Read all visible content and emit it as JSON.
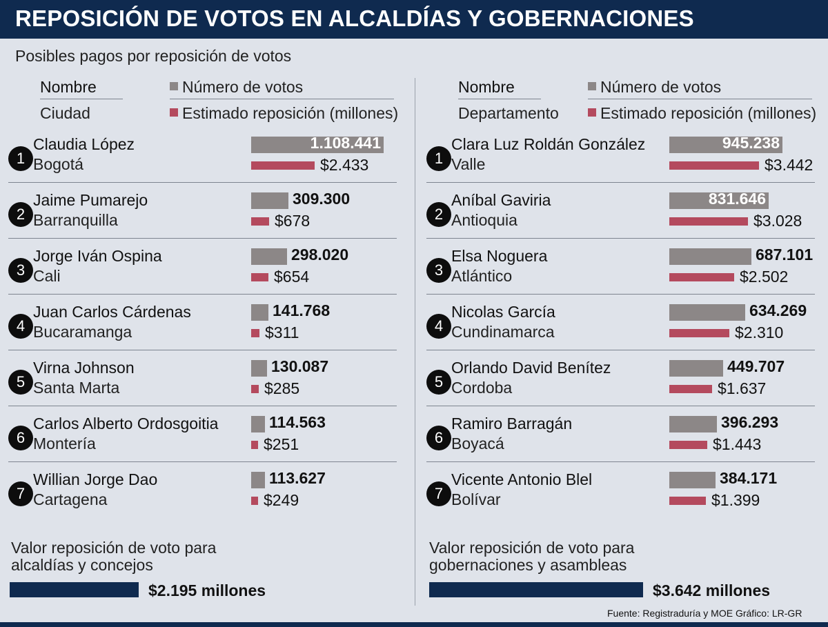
{
  "header": {
    "title": "REPOSICIÓN DE VOTOS EN ALCALDÍAS Y GOBERNACIONES",
    "subtitle": "Posibles pagos por reposición de votos"
  },
  "colors": {
    "header_bg": "#0f2a4f",
    "votes_bar": "#8c8787",
    "reposicion_bar": "#b44a5e",
    "total_bar": "#0f2a4f"
  },
  "legend": {
    "votes": "Número de votos",
    "reposicion": "Estimado reposición (millones)"
  },
  "chart_data": [
    {
      "type": "bar",
      "col_name": "Nombre",
      "col_place": "Ciudad",
      "vote_max": 1108441,
      "repo_max": 3442,
      "rows": [
        {
          "rank": "1",
          "name": "Claudia López",
          "place": "Bogotá",
          "votes": 1108441,
          "votes_label": "1.108.441",
          "repo": 2433,
          "repo_label": "$2.433"
        },
        {
          "rank": "2",
          "name": "Jaime Pumarejo",
          "place": "Barranquilla",
          "votes": 309300,
          "votes_label": "309.300",
          "repo": 678,
          "repo_label": "$678"
        },
        {
          "rank": "3",
          "name": "Jorge Iván Ospina",
          "place": "Cali",
          "votes": 298020,
          "votes_label": "298.020",
          "repo": 654,
          "repo_label": "$654"
        },
        {
          "rank": "4",
          "name": "Juan Carlos Cárdenas",
          "place": "Bucaramanga",
          "votes": 141768,
          "votes_label": "141.768",
          "repo": 311,
          "repo_label": "$311"
        },
        {
          "rank": "5",
          "name": "Virna Johnson",
          "place": "Santa Marta",
          "votes": 130087,
          "votes_label": "130.087",
          "repo": 285,
          "repo_label": "$285"
        },
        {
          "rank": "6",
          "name": "Carlos Alberto Ordosgoitia",
          "place": "Montería",
          "votes": 114563,
          "votes_label": "114.563",
          "repo": 251,
          "repo_label": "$251"
        },
        {
          "rank": "7",
          "name": "Willian Jorge Dao",
          "place": "Cartagena",
          "votes": 113627,
          "votes_label": "113.627",
          "repo": 249,
          "repo_label": "$249"
        }
      ],
      "total": {
        "label_line1": "Valor reposición de voto para",
        "label_line2": "alcaldías y concejos",
        "value": 2195,
        "value_label": "$2.195 millones"
      }
    },
    {
      "type": "bar",
      "col_name": "Nombre",
      "col_place": "Departamento",
      "vote_max": 1108441,
      "repo_max": 3442,
      "rows": [
        {
          "rank": "1",
          "name": "Clara Luz Roldán González",
          "place": "Valle",
          "votes": 945238,
          "votes_label": "945.238",
          "repo": 3442,
          "repo_label": "$3.442"
        },
        {
          "rank": "2",
          "name": "Aníbal Gaviria",
          "place": "Antioquia",
          "votes": 831646,
          "votes_label": "831.646",
          "repo": 3028,
          "repo_label": "$3.028"
        },
        {
          "rank": "3",
          "name": "Elsa Noguera",
          "place": "Atlántico",
          "votes": 687101,
          "votes_label": "687.101",
          "repo": 2502,
          "repo_label": "$2.502"
        },
        {
          "rank": "4",
          "name": "Nicolas García",
          "place": "Cundinamarca",
          "votes": 634269,
          "votes_label": "634.269",
          "repo": 2310,
          "repo_label": "$2.310"
        },
        {
          "rank": "5",
          "name": "Orlando David Benítez",
          "place": "Cordoba",
          "votes": 449707,
          "votes_label": "449.707",
          "repo": 1637,
          "repo_label": "$1.637"
        },
        {
          "rank": "6",
          "name": "Ramiro Barragán",
          "place": "Boyacá",
          "votes": 396293,
          "votes_label": "396.293",
          "repo": 1443,
          "repo_label": "$1.443"
        },
        {
          "rank": "7",
          "name": "Vicente Antonio Blel",
          "place": "Bolívar",
          "votes": 384171,
          "votes_label": "384.171",
          "repo": 1399,
          "repo_label": "$1.399"
        }
      ],
      "total": {
        "label_line1": "Valor reposición de voto para",
        "label_line2": "gobernaciones y asambleas",
        "value": 3642,
        "value_label": "$3.642 millones"
      }
    }
  ],
  "footer": {
    "source": "Fuente: Registraduría y MOE    Gráfico: LR-GR"
  }
}
